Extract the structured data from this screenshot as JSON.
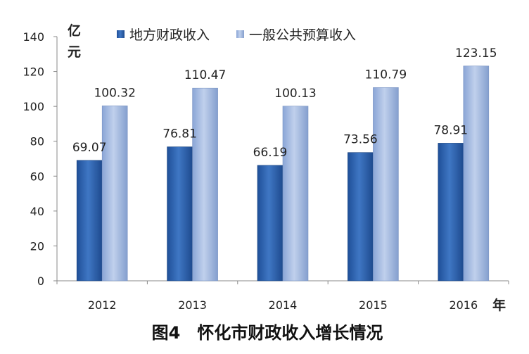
{
  "chart_data": {
    "type": "bar",
    "title": "图4　怀化市财政收入增长情况",
    "categories": [
      "2012",
      "2013",
      "2014",
      "2015",
      "2016"
    ],
    "series": [
      {
        "name": "地方财政收入",
        "values": [
          69.07,
          76.81,
          66.19,
          73.56,
          78.91
        ],
        "color": "#2f63ad"
      },
      {
        "name": "一般公共预算收入",
        "values": [
          100.32,
          110.47,
          100.13,
          110.79,
          123.15
        ],
        "color": "#9fb6de"
      }
    ],
    "ylim": [
      0,
      140
    ],
    "yticks": [
      "0",
      "20",
      "40",
      "60",
      "80",
      "100",
      "120",
      "140"
    ],
    "ylabel": "亿元",
    "xlabel": "年",
    "legend": "top",
    "grid": false
  }
}
